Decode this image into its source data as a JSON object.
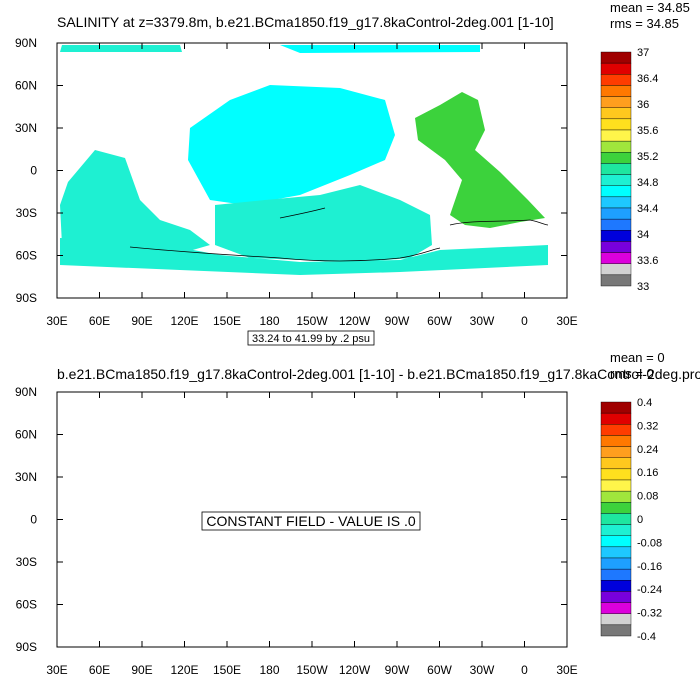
{
  "chart_data": [
    {
      "type": "heatmap",
      "title": "SALINITY at z=3379.8m, b.e21.BCma1850.f19_g17.8kaControl-2deg.001 [1-10]",
      "stats": {
        "mean": "mean = 34.85",
        "rms": "rms = 34.85"
      },
      "contour_info": "33.24 to 41.99 by .2 psu",
      "x_ticks": [
        "30E",
        "60E",
        "90E",
        "120E",
        "150E",
        "180",
        "150W",
        "120W",
        "90W",
        "60W",
        "30W",
        "0",
        "30E"
      ],
      "y_ticks": [
        "90N",
        "60N",
        "30N",
        "0",
        "30S",
        "60S",
        "90S"
      ],
      "colorbar": {
        "labels": [
          "37",
          "36.4",
          "36",
          "35.6",
          "35.2",
          "34.8",
          "34.4",
          "34",
          "33.6",
          "33"
        ],
        "colors": [
          "#a00000",
          "#e00000",
          "#ff3c00",
          "#ff7800",
          "#ff9e1e",
          "#ffc81e",
          "#ffe01e",
          "#fff54a",
          "#a0e63c",
          "#3cd23c",
          "#1ee6a0",
          "#1ef0d2",
          "#00ffff",
          "#1ec8ff",
          "#1ea0ff",
          "#1e78ff",
          "#0000dc",
          "#7800dc",
          "#dc00dc",
          "#d2d2d2",
          "#787878"
        ]
      },
      "field_colors": {
        "ocean_main": "#00ffff",
        "ocean_south": "#1ef0d2",
        "atlantic": "#3cd23c",
        "land": "#ffffff"
      }
    },
    {
      "type": "heatmap",
      "title": "b.e21.BCma1850.f19_g17.8kaControl-2deg.001 [1-10] - b.e21.BCma1850.f19_g17.8kaControl-2deg.pro",
      "stats": {
        "mean": "mean = 0",
        "rms": "rms = 0"
      },
      "annotation": "CONSTANT FIELD - VALUE IS .0",
      "x_ticks": [
        "30E",
        "60E",
        "90E",
        "120E",
        "150E",
        "180",
        "150W",
        "120W",
        "90W",
        "60W",
        "30W",
        "0",
        "30E"
      ],
      "y_ticks": [
        "90N",
        "60N",
        "30N",
        "0",
        "30S",
        "60S",
        "90S"
      ],
      "colorbar": {
        "labels": [
          "0.4",
          "0.32",
          "0.24",
          "0.16",
          "0.08",
          "0",
          "-0.08",
          "-0.16",
          "-0.24",
          "-0.32",
          "-0.4"
        ],
        "colors": [
          "#a00000",
          "#e00000",
          "#ff3c00",
          "#ff7800",
          "#ff9e1e",
          "#ffc81e",
          "#ffe01e",
          "#fff54a",
          "#a0e63c",
          "#3cd23c",
          "#1ee6a0",
          "#1ef0d2",
          "#00ffff",
          "#1ec8ff",
          "#1ea0ff",
          "#1e78ff",
          "#0000dc",
          "#7800dc",
          "#dc00dc",
          "#d2d2d2",
          "#787878"
        ]
      }
    }
  ]
}
